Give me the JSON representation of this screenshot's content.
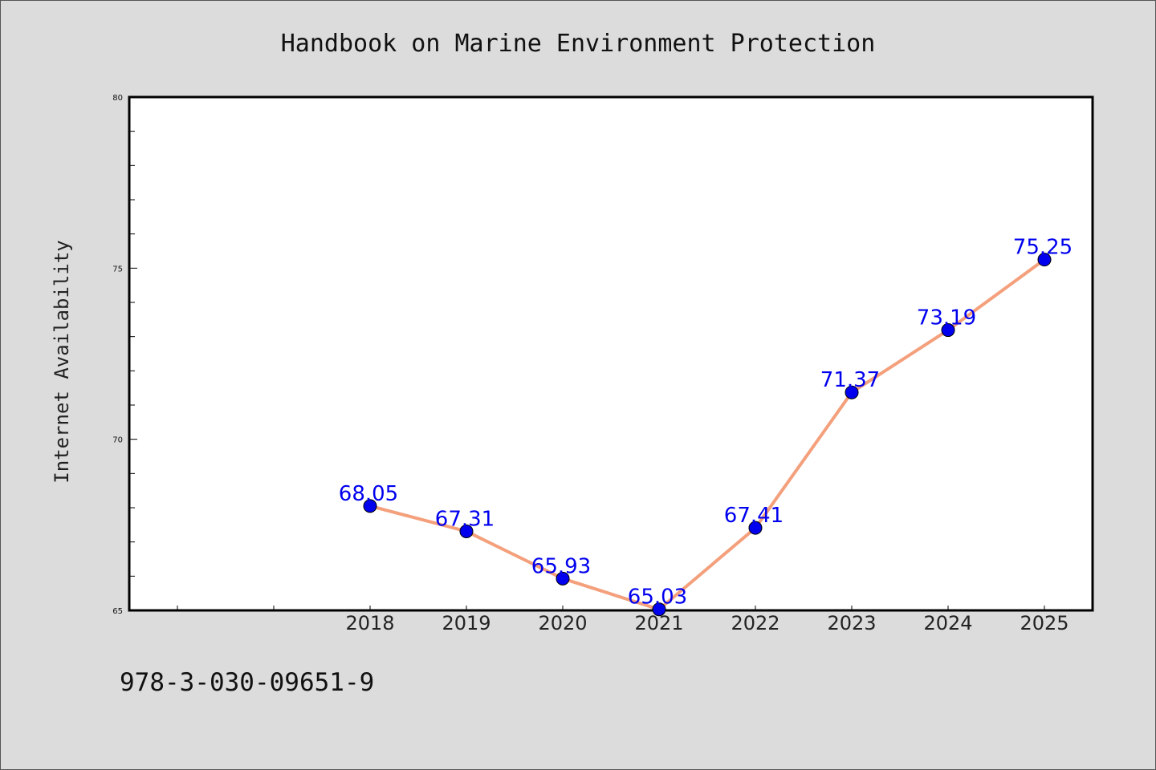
{
  "chart_data": {
    "type": "line",
    "title": "Handbook on Marine Environment Protection",
    "xlabel": "",
    "ylabel": "Internet Availability",
    "categories": [
      "2018",
      "2019",
      "2020",
      "2021",
      "2022",
      "2023",
      "2024",
      "2025"
    ],
    "values": [
      68.05,
      67.31,
      65.93,
      65.03,
      67.41,
      71.37,
      73.19,
      75.25
    ],
    "value_labels": [
      "68.05",
      "67.31",
      "65.93",
      "65.03",
      "67.41",
      "71.37",
      "73.19",
      "75.25"
    ],
    "ylim": [
      65,
      80
    ],
    "yticks": [
      "65",
      "70",
      "75",
      "80"
    ],
    "grid": false,
    "legend": "none",
    "colors": {
      "line": "#f4a07c",
      "marker": "#0000ee",
      "label": "#0000ee",
      "background": "#dcdcdc",
      "plot_background": "#ffffff"
    }
  },
  "footer": {
    "isbn": "978-3-030-09651-9"
  }
}
